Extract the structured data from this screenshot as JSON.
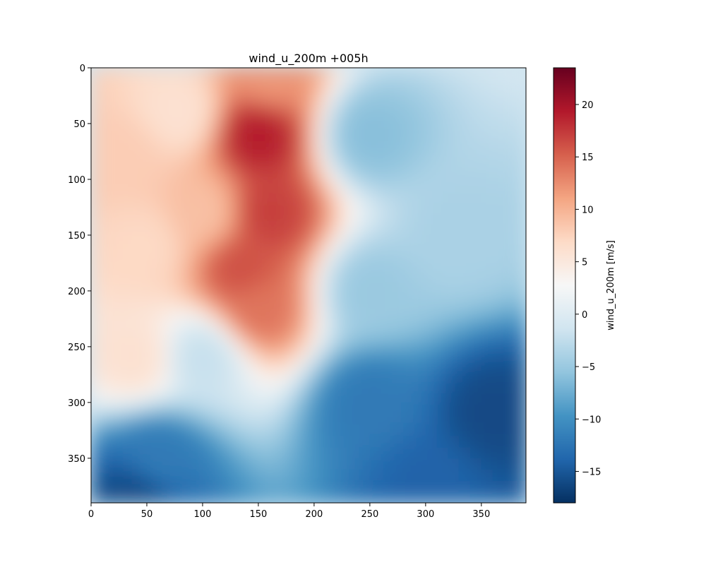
{
  "chart_data": {
    "type": "heatmap",
    "title": "wind_u_200m +005h",
    "xlabel": "",
    "ylabel": "",
    "grid_size": [
      390,
      390
    ],
    "xlim": [
      0,
      390
    ],
    "ylim": [
      390,
      0
    ],
    "x_ticks": [
      0,
      50,
      100,
      150,
      200,
      250,
      300,
      350
    ],
    "y_ticks": [
      0,
      50,
      100,
      150,
      200,
      250,
      300,
      350
    ],
    "colormap": "RdBu_r",
    "colorbar": {
      "label": "wind_u_200m [m/s]",
      "range": [
        -18,
        23.5
      ],
      "ticks": [
        -15,
        -10,
        -5,
        0,
        5,
        10,
        15,
        20
      ]
    },
    "field_approx": {
      "description_points": [
        {
          "x": 30,
          "y": 80,
          "value": 8
        },
        {
          "x": 80,
          "y": 40,
          "value": 6
        },
        {
          "x": 100,
          "y": 130,
          "value": 9
        },
        {
          "x": 50,
          "y": 160,
          "value": 7
        },
        {
          "x": 40,
          "y": 260,
          "value": 6
        },
        {
          "x": 160,
          "y": 10,
          "value": 12
        },
        {
          "x": 150,
          "y": 60,
          "value": 19
        },
        {
          "x": 160,
          "y": 130,
          "value": 17
        },
        {
          "x": 135,
          "y": 180,
          "value": 16
        },
        {
          "x": 150,
          "y": 215,
          "value": 14
        },
        {
          "x": 250,
          "y": 60,
          "value": -6
        },
        {
          "x": 330,
          "y": 150,
          "value": -4
        },
        {
          "x": 250,
          "y": 200,
          "value": -5
        },
        {
          "x": 100,
          "y": 260,
          "value": -2
        },
        {
          "x": 250,
          "y": 300,
          "value": -12
        },
        {
          "x": 360,
          "y": 310,
          "value": -16
        },
        {
          "x": 60,
          "y": 350,
          "value": -12
        },
        {
          "x": 40,
          "y": 385,
          "value": -16
        },
        {
          "x": 300,
          "y": 370,
          "value": -14
        }
      ]
    }
  },
  "colors": {
    "cmap_stops": [
      "#053061",
      "#2166ac",
      "#4393c3",
      "#92c5de",
      "#d1e5f0",
      "#f7f7f7",
      "#fddbc7",
      "#f4a582",
      "#d6604d",
      "#b2182b",
      "#67001f"
    ]
  }
}
